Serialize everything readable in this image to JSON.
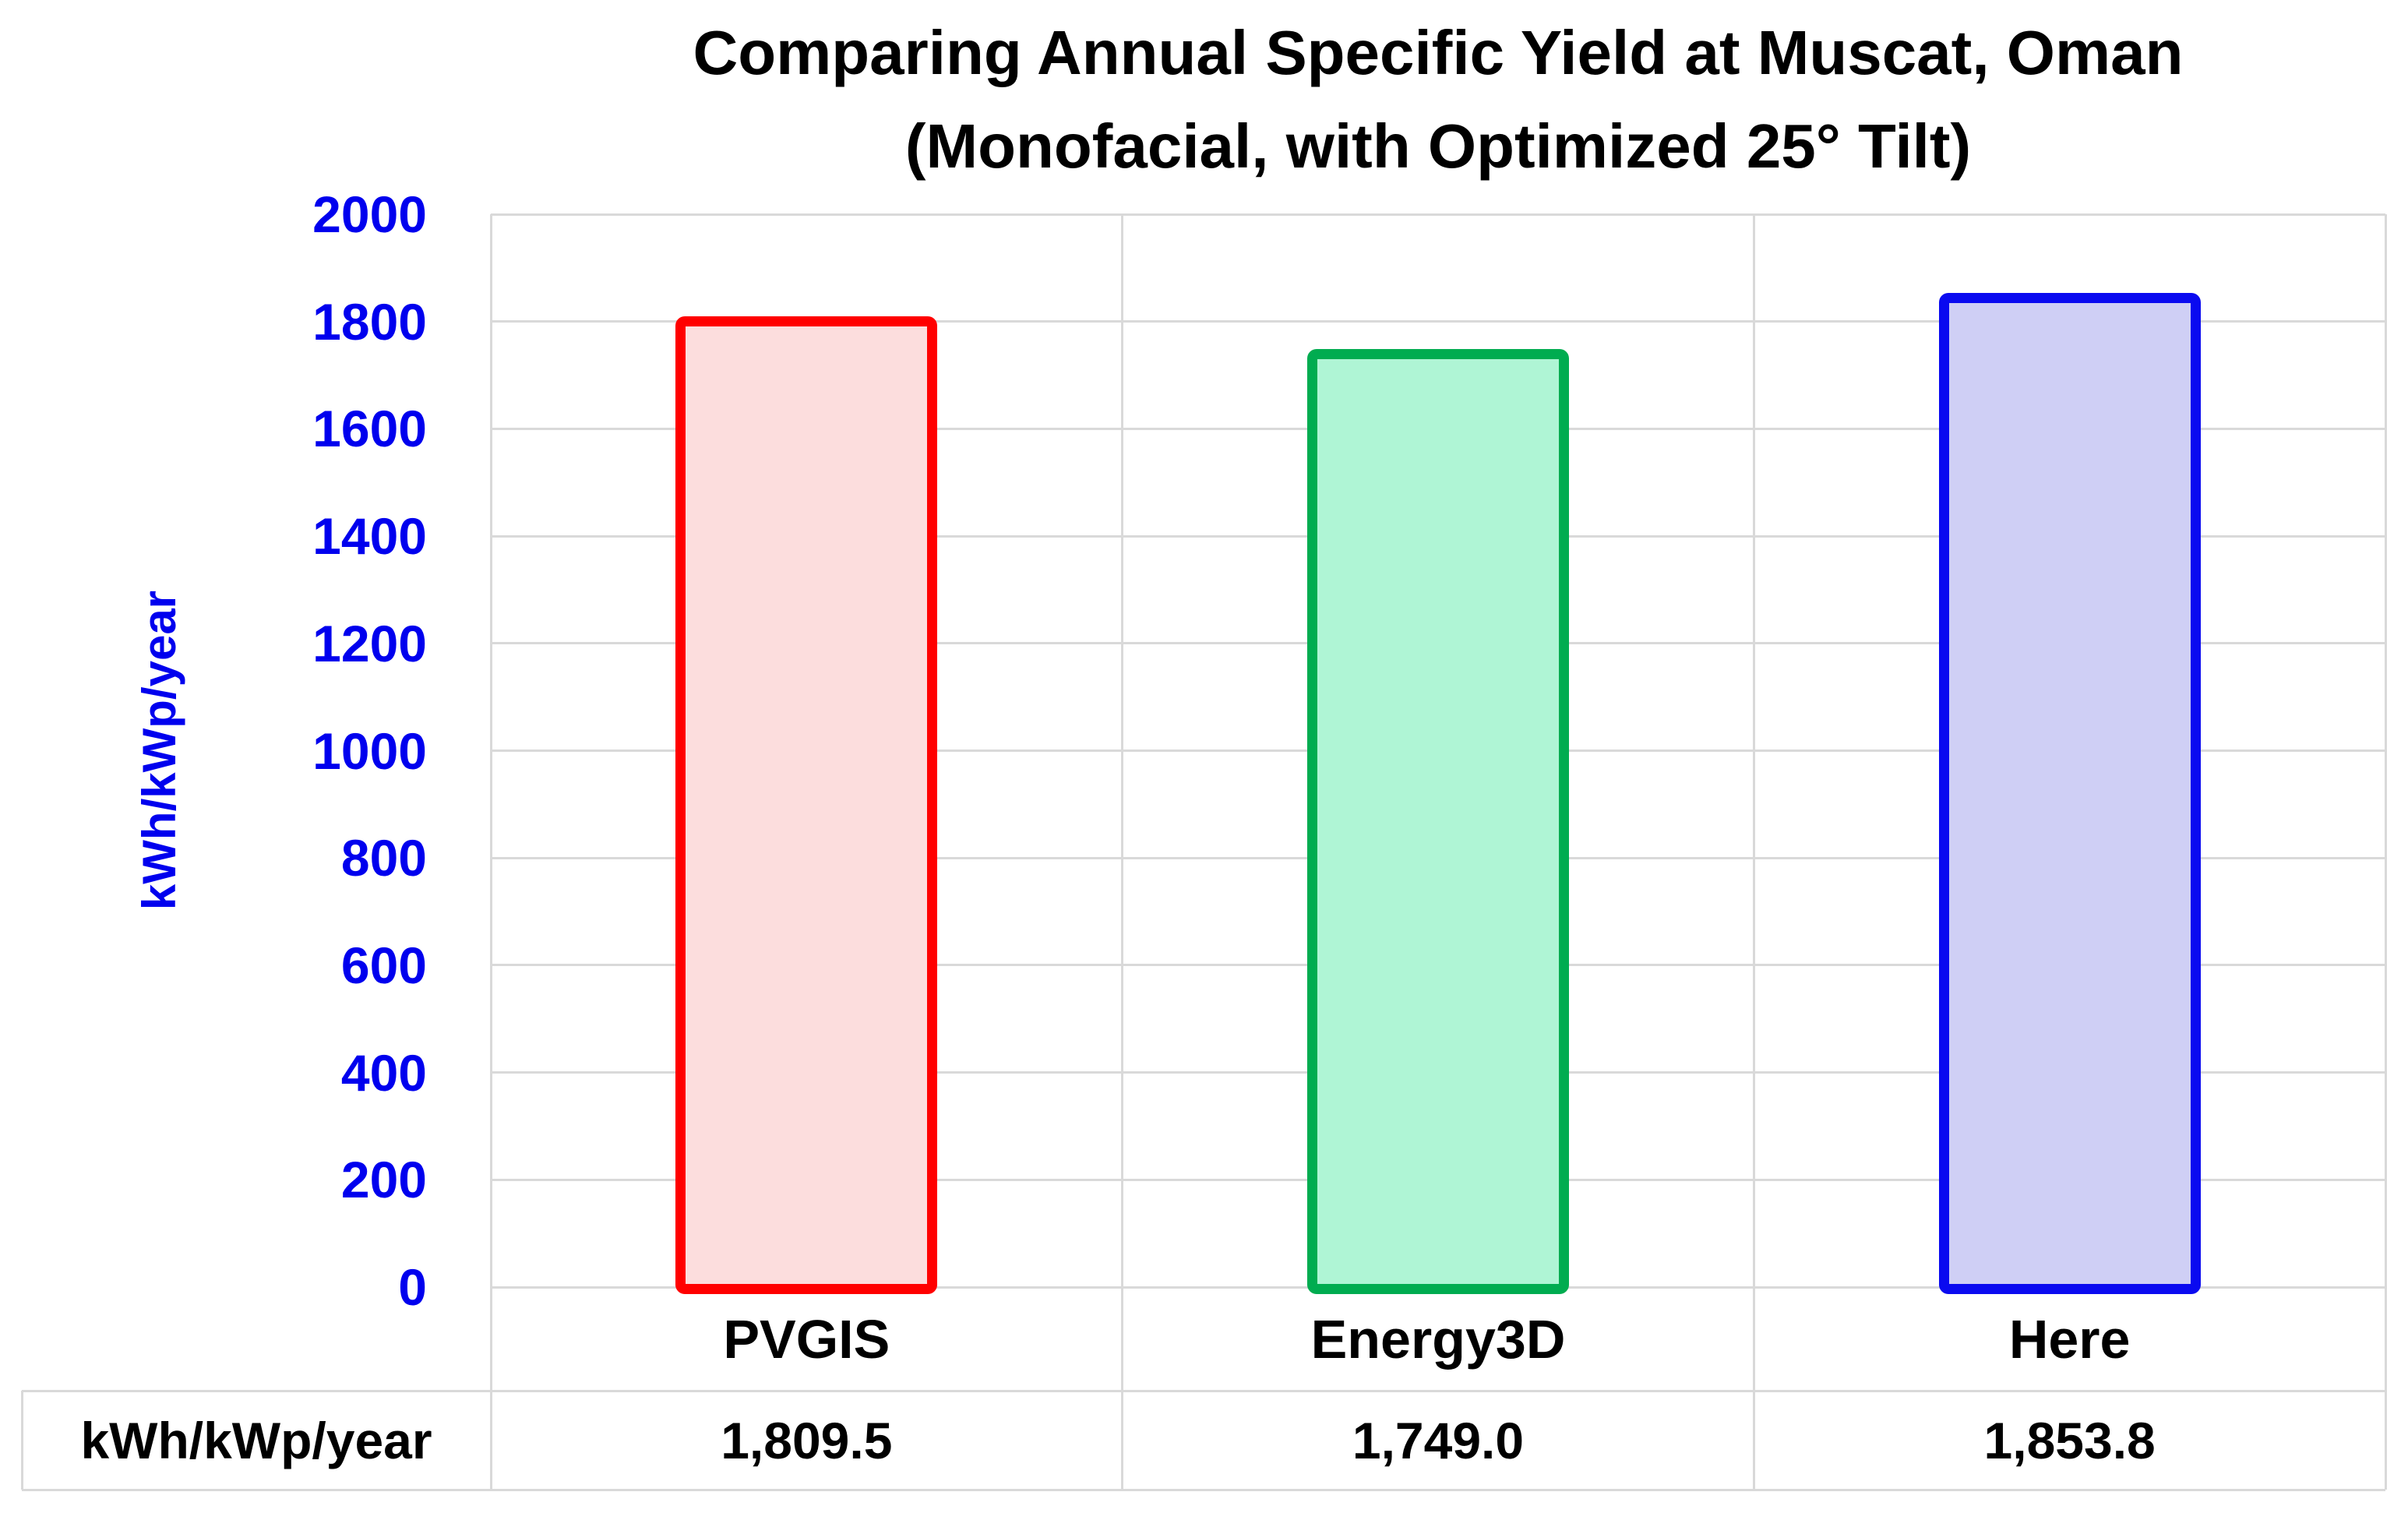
{
  "title": {
    "line1": "Comparing Annual Specific Yield at Muscat, Oman",
    "line2": "(Monofacial, with Optimized 25° Tilt)"
  },
  "y_axis": {
    "label": "kWh/kWp/year",
    "text_color": "#0000EE"
  },
  "table": {
    "row_label": "kWh/kWp/year"
  },
  "chart_data": {
    "type": "bar",
    "title": "Comparing Annual Specific Yield at Muscat, Oman (Monofacial, with Optimized 25° Tilt)",
    "categories": [
      "PVGIS",
      "Energy3D",
      "Here"
    ],
    "values": [
      1809.5,
      1749.0,
      1853.8
    ],
    "values_formatted": [
      "1,809.5",
      "1,749.0",
      "1,853.8"
    ],
    "xlabel": "",
    "ylabel": "kWh/kWp/year",
    "ylim": [
      0,
      2000
    ],
    "ytick_step": 200,
    "yticks": [
      0,
      200,
      400,
      600,
      800,
      1000,
      1200,
      1400,
      1600,
      1800,
      2000
    ],
    "grid": true,
    "legend": "none",
    "gridline_color": "#D9D9D9",
    "bar_styles": [
      {
        "name": "PVGIS",
        "border": "#FF0000",
        "fill": "#FCDDDD"
      },
      {
        "name": "Energy3D",
        "border": "#00AC50",
        "fill": "#AFF5D5"
      },
      {
        "name": "Here",
        "border": "#0A0AF0",
        "fill": "#CFCFF5"
      }
    ]
  }
}
